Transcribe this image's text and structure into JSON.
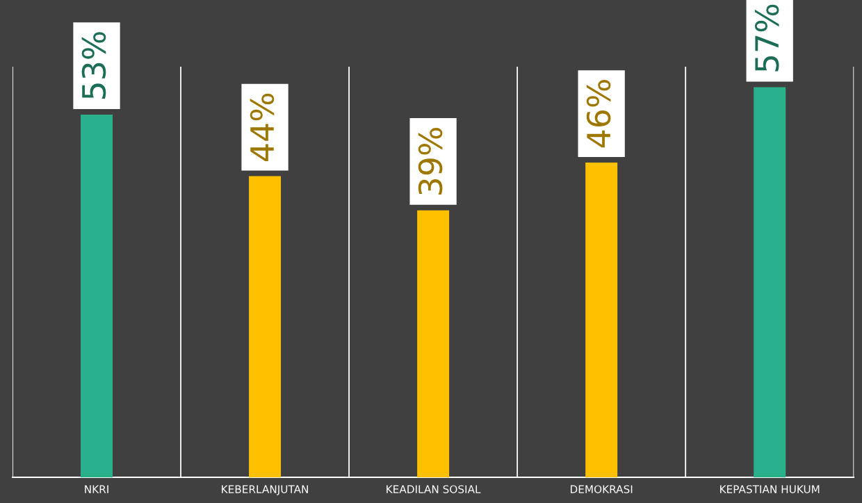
{
  "chart_data": {
    "type": "bar",
    "categories": [
      "NKRI",
      "KEBERLANJUTAN",
      "KEADILAN SOSIAL",
      "DEMOKRASI",
      "KEPASTIAN HUKUM"
    ],
    "values": [
      53,
      44,
      39,
      46,
      57
    ],
    "colors": [
      "#2bb08c",
      "#ffc000",
      "#ffc000",
      "#ffc000",
      "#2bb08c"
    ],
    "value_labels": [
      "53%",
      "44%",
      "39%",
      "46%",
      "57%"
    ],
    "ylim": [
      0,
      60
    ],
    "grid": "x",
    "tick_labels": "x",
    "legend": false
  }
}
